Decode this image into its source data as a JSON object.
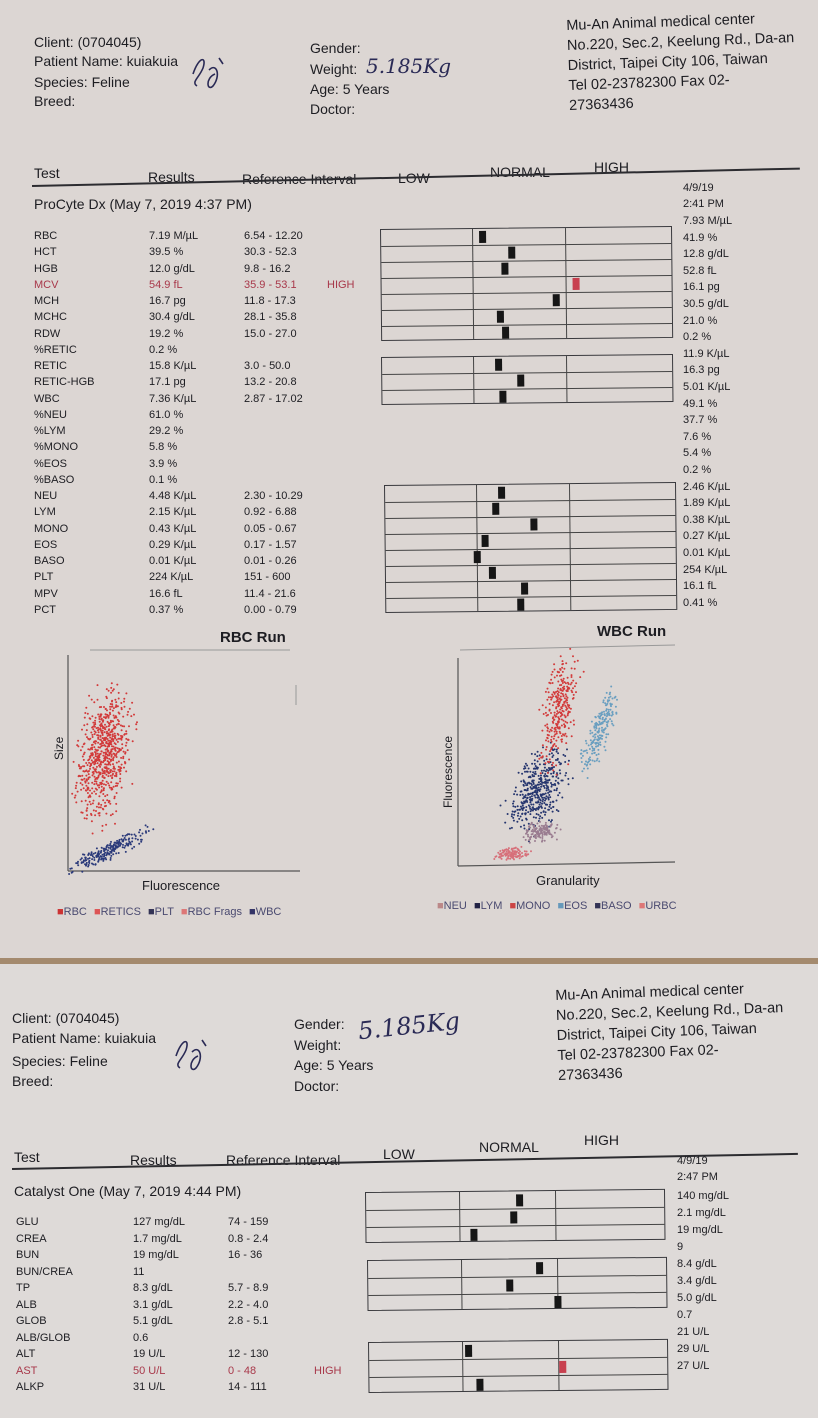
{
  "report1": {
    "client_label": "Client:",
    "client_id": "(0704045)",
    "patient_label": "Patient Name:",
    "patient_name": "kuiakuia",
    "species_label": "Species:",
    "species": "Feline",
    "breed_label": "Breed:",
    "gender_label": "Gender:",
    "weight_label": "Weight:",
    "weight_hand": "5.185Kg",
    "age_label": "Age:",
    "age": "5 Years",
    "doctor_label": "Doctor:",
    "clinic": [
      "Mu-An Animal medical center",
      "No.220, Sec.2, Keelung Rd., Da-an",
      "District, Taipei City 106, Taiwan",
      "Tel 02-23782300  Fax 02-",
      "27363436"
    ],
    "col_test": "Test",
    "col_results": "Results",
    "col_ref": "Reference Interval",
    "col_low": "LOW",
    "col_normal": "NORMAL",
    "col_high": "HIGH",
    "section": "ProCyte Dx (May 7, 2019 4:37 PM)",
    "date": "4/9/19",
    "time": "2:41 PM",
    "rows": [
      {
        "test": "RBC",
        "result": "7.19 M/µL",
        "ref": "6.54 - 12.20",
        "flag": ""
      },
      {
        "test": "HCT",
        "result": "39.5 %",
        "ref": "30.3 - 52.3",
        "flag": ""
      },
      {
        "test": "HGB",
        "result": "12.0 g/dL",
        "ref": "9.8 - 16.2",
        "flag": ""
      },
      {
        "test": "MCV",
        "result": "54.9 fL",
        "ref": "35.9 - 53.1",
        "flag": "HIGH"
      },
      {
        "test": "MCH",
        "result": "16.7 pg",
        "ref": "11.8 - 17.3",
        "flag": ""
      },
      {
        "test": "MCHC",
        "result": "30.4 g/dL",
        "ref": "28.1 - 35.8",
        "flag": ""
      },
      {
        "test": "RDW",
        "result": "19.2 %",
        "ref": "15.0 - 27.0",
        "flag": ""
      },
      {
        "test": "%RETIC",
        "result": "0.2 %",
        "ref": "",
        "flag": ""
      },
      {
        "test": "RETIC",
        "result": "15.8 K/µL",
        "ref": "3.0 - 50.0",
        "flag": ""
      },
      {
        "test": "RETIC-HGB",
        "result": "17.1 pg",
        "ref": "13.2 - 20.8",
        "flag": ""
      },
      {
        "test": "WBC",
        "result": "7.36 K/µL",
        "ref": "2.87 - 17.02",
        "flag": ""
      },
      {
        "test": "%NEU",
        "result": "61.0 %",
        "ref": "",
        "flag": ""
      },
      {
        "test": "%LYM",
        "result": "29.2 %",
        "ref": "",
        "flag": ""
      },
      {
        "test": "%MONO",
        "result": "5.8 %",
        "ref": "",
        "flag": ""
      },
      {
        "test": "%EOS",
        "result": "3.9 %",
        "ref": "",
        "flag": ""
      },
      {
        "test": "%BASO",
        "result": "0.1 %",
        "ref": "",
        "flag": ""
      },
      {
        "test": "NEU",
        "result": "4.48 K/µL",
        "ref": "2.30 - 10.29",
        "flag": ""
      },
      {
        "test": "LYM",
        "result": "2.15 K/µL",
        "ref": "0.92 - 6.88",
        "flag": ""
      },
      {
        "test": "MONO",
        "result": "0.43 K/µL",
        "ref": "0.05 - 0.67",
        "flag": ""
      },
      {
        "test": "EOS",
        "result": "0.29 K/µL",
        "ref": "0.17 - 1.57",
        "flag": ""
      },
      {
        "test": "BASO",
        "result": "0.01 K/µL",
        "ref": "0.01 - 0.26",
        "flag": ""
      },
      {
        "test": "PLT",
        "result": "224 K/µL",
        "ref": "151 - 600",
        "flag": ""
      },
      {
        "test": "MPV",
        "result": "16.6 fL",
        "ref": "11.4 - 21.6",
        "flag": ""
      },
      {
        "test": "PCT",
        "result": "0.37 %",
        "ref": "0.00 - 0.79",
        "flag": ""
      }
    ],
    "right_values": [
      "7.93 M/µL",
      "41.9 %",
      "12.8 g/dL",
      "52.8 fL",
      "16.1 pg",
      "30.5 g/dL",
      "21.0 %",
      "0.2 %",
      "11.9 K/µL",
      "16.3 pg",
      "5.01 K/µL",
      "49.1 %",
      "37.7 %",
      "7.6 %",
      "5.4 %",
      "0.2 %",
      "2.46 K/µL",
      "1.89 K/µL",
      "0.38 K/µL",
      "0.27 K/µL",
      "0.01 K/µL",
      "254 K/µL",
      "16.1 fL",
      "0.41 %"
    ],
    "rbc_run_title": "RBC Run",
    "rbc_y_label": "Size",
    "rbc_x_label": "Fluorescence",
    "rbc_legend": [
      "RBC",
      "RETICS",
      "PLT",
      "RBC Frags",
      "WBC"
    ],
    "wbc_run_title": "WBC Run",
    "wbc_y_label": "Fluorescence",
    "wbc_x_label": "Granularity",
    "wbc_legend": [
      "NEU",
      "LYM",
      "MONO",
      "EOS",
      "BASO",
      "URBC"
    ]
  },
  "report2": {
    "client_label": "Client:",
    "client_id": "(0704045)",
    "patient_label": "Patient Name:",
    "patient_name": "kuiakuia",
    "species_label": "Species:",
    "species": "Feline",
    "breed_label": "Breed:",
    "gender_label": "Gender:",
    "weight_label": "Weight:",
    "weight_hand": "5.185Kg",
    "age_label": "Age:",
    "age": "5 Years",
    "doctor_label": "Doctor:",
    "clinic": [
      "Mu-An Animal medical center",
      "No.220, Sec.2, Keelung Rd., Da-an",
      "District, Taipei City 106, Taiwan",
      "Tel 02-23782300  Fax 02-",
      "27363436"
    ],
    "col_test": "Test",
    "col_results": "Results",
    "col_ref": "Reference Interval",
    "col_low": "LOW",
    "col_normal": "NORMAL",
    "col_high": "HIGH",
    "section": "Catalyst One (May 7, 2019 4:44 PM)",
    "date": "4/9/19",
    "time": "2:47 PM",
    "rows": [
      {
        "test": "GLU",
        "result": "127 mg/dL",
        "ref": "74 - 159",
        "flag": ""
      },
      {
        "test": "CREA",
        "result": "1.7 mg/dL",
        "ref": "0.8 - 2.4",
        "flag": ""
      },
      {
        "test": "BUN",
        "result": "19 mg/dL",
        "ref": "16 - 36",
        "flag": ""
      },
      {
        "test": "BUN/CREA",
        "result": "11",
        "ref": "",
        "flag": ""
      },
      {
        "test": "TP",
        "result": "8.3 g/dL",
        "ref": "5.7 - 8.9",
        "flag": ""
      },
      {
        "test": "ALB",
        "result": "3.1 g/dL",
        "ref": "2.2 - 4.0",
        "flag": ""
      },
      {
        "test": "GLOB",
        "result": "5.1 g/dL",
        "ref": "2.8 - 5.1",
        "flag": ""
      },
      {
        "test": "ALB/GLOB",
        "result": "0.6",
        "ref": "",
        "flag": ""
      },
      {
        "test": "ALT",
        "result": "19 U/L",
        "ref": "12 - 130",
        "flag": ""
      },
      {
        "test": "AST",
        "result": "50 U/L",
        "ref": "0 - 48",
        "flag": "HIGH"
      },
      {
        "test": "ALKP",
        "result": "31 U/L",
        "ref": "14 - 111",
        "flag": ""
      }
    ],
    "right_values": [
      "140 mg/dL",
      "2.1 mg/dL",
      "19 mg/dL",
      "9",
      "8.4 g/dL",
      "3.4 g/dL",
      "5.0 g/dL",
      "0.7",
      "21 U/L",
      "29 U/L",
      "27 U/L"
    ]
  }
}
